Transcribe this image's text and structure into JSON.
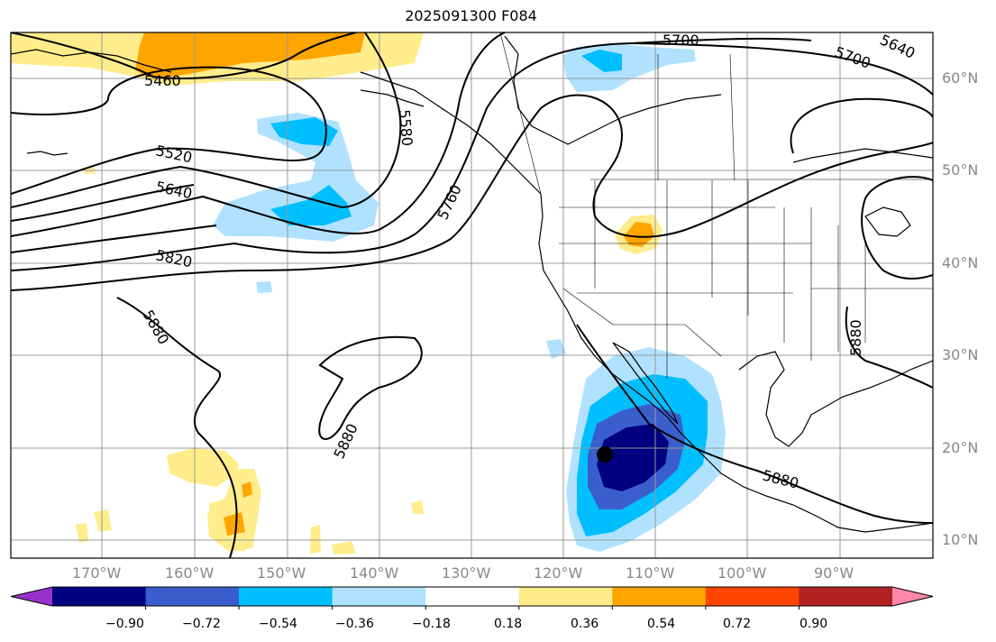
{
  "title": "2025091300 F084",
  "lon_labels": [
    "170°W",
    "160°W",
    "150°W",
    "140°W",
    "130°W",
    "120°W",
    "110°W",
    "100°W",
    "90°W"
  ],
  "lat_labels": [
    "60°N",
    "50°N",
    "40°N",
    "30°N",
    "20°N",
    "10°N"
  ],
  "contour_labels": [
    "5460",
    "5520",
    "5580",
    "5640",
    "5700",
    "5700",
    "5640",
    "5760",
    "5820",
    "5880",
    "5880",
    "5880",
    "5880"
  ],
  "colorbar": {
    "colors": [
      "#9932cc",
      "#000080",
      "#3a5fcd",
      "#00bfff",
      "#b0e2ff",
      "#ffffff",
      "#ffec8b",
      "#ffa500",
      "#ff4500",
      "#b22222",
      "#ff88aa"
    ],
    "tick_labels": [
      "−0.90",
      "−0.72",
      "−0.54",
      "−0.36",
      "−0.18",
      "0.18",
      "0.36",
      "0.54",
      "0.72",
      "0.90"
    ]
  },
  "marker": "storm-center-dot"
}
